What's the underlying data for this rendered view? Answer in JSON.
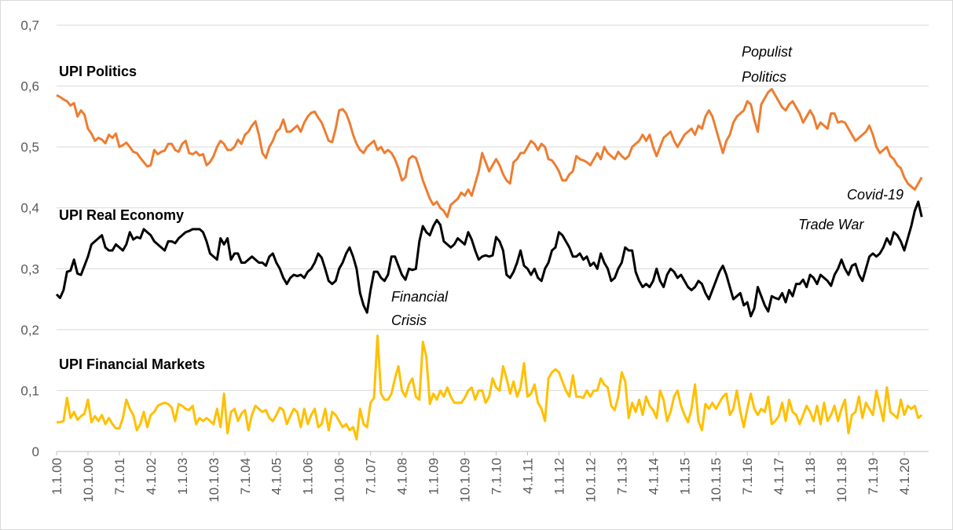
{
  "chart_data": {
    "type": "line",
    "categories": [
      "1.1.00",
      null,
      null,
      null,
      null,
      null,
      null,
      null,
      null,
      "10.1.00",
      null,
      null,
      null,
      null,
      null,
      null,
      null,
      null,
      "7.1.01",
      null,
      null,
      null,
      null,
      null,
      null,
      null,
      null,
      "4.1.02",
      null,
      null,
      null,
      null,
      null,
      null,
      null,
      null,
      "1.1.03",
      null,
      null,
      null,
      null,
      null,
      null,
      null,
      null,
      "10.1.03",
      null,
      null,
      null,
      null,
      null,
      null,
      null,
      null,
      "7.1.04",
      null,
      null,
      null,
      null,
      null,
      null,
      null,
      null,
      "4.1.05",
      null,
      null,
      null,
      null,
      null,
      null,
      null,
      null,
      "1.1.06",
      null,
      null,
      null,
      null,
      null,
      null,
      null,
      null,
      "10.1.06",
      null,
      null,
      null,
      null,
      null,
      null,
      null,
      null,
      "7.1.07",
      null,
      null,
      null,
      null,
      null,
      null,
      null,
      null,
      "4.1.08",
      null,
      null,
      null,
      null,
      null,
      null,
      null,
      null,
      "1.1.09",
      null,
      null,
      null,
      null,
      null,
      null,
      null,
      null,
      "10.1.09",
      null,
      null,
      null,
      null,
      null,
      null,
      null,
      null,
      "7.1.10",
      null,
      null,
      null,
      null,
      null,
      null,
      null,
      null,
      "4.1.11",
      null,
      null,
      null,
      null,
      null,
      null,
      null,
      null,
      "1.1.12",
      null,
      null,
      null,
      null,
      null,
      null,
      null,
      null,
      "10.1.12",
      null,
      null,
      null,
      null,
      null,
      null,
      null,
      null,
      "7.1.13",
      null,
      null,
      null,
      null,
      null,
      null,
      null,
      null,
      "4.1.14",
      null,
      null,
      null,
      null,
      null,
      null,
      null,
      null,
      "1.1.15",
      null,
      null,
      null,
      null,
      null,
      null,
      null,
      null,
      "10.1.15",
      null,
      null,
      null,
      null,
      null,
      null,
      null,
      null,
      "7.1.16",
      null,
      null,
      null,
      null,
      null,
      null,
      null,
      null,
      "4.1.17",
      null,
      null,
      null,
      null,
      null,
      null,
      null,
      null,
      "1.1.18",
      null,
      null,
      null,
      null,
      null,
      null,
      null,
      null,
      "10.1.18",
      null,
      null,
      null,
      null,
      null,
      null,
      null,
      null,
      "7.1.19",
      null,
      null,
      null,
      null,
      null,
      null,
      null,
      null,
      "4.1.20",
      null,
      null,
      null,
      null,
      null
    ],
    "series": [
      {
        "name": "UPI Politics",
        "color": "#ED7D31",
        "values": [
          0.585,
          0.582,
          0.578,
          0.575,
          0.568,
          0.572,
          0.55,
          0.56,
          0.553,
          0.53,
          0.522,
          0.51,
          0.515,
          0.512,
          0.506,
          0.52,
          0.515,
          0.522,
          0.5,
          0.503,
          0.507,
          0.5,
          0.492,
          0.49,
          0.482,
          0.475,
          0.468,
          0.47,
          0.495,
          0.488,
          0.492,
          0.494,
          0.505,
          0.505,
          0.495,
          0.492,
          0.505,
          0.51,
          0.49,
          0.488,
          0.492,
          0.486,
          0.488,
          0.47,
          0.475,
          0.485,
          0.5,
          0.51,
          0.505,
          0.495,
          0.495,
          0.5,
          0.512,
          0.505,
          0.52,
          0.525,
          0.535,
          0.542,
          0.52,
          0.49,
          0.482,
          0.5,
          0.51,
          0.525,
          0.53,
          0.545,
          0.525,
          0.525,
          0.53,
          0.535,
          0.525,
          0.54,
          0.55,
          0.556,
          0.558,
          0.548,
          0.54,
          0.525,
          0.51,
          0.508,
          0.53,
          0.56,
          0.562,
          0.555,
          0.54,
          0.52,
          0.505,
          0.495,
          0.49,
          0.5,
          0.505,
          0.51,
          0.495,
          0.5,
          0.49,
          0.495,
          0.49,
          0.48,
          0.465,
          0.445,
          0.45,
          0.48,
          0.485,
          0.482,
          0.465,
          0.445,
          0.43,
          0.415,
          0.405,
          0.41,
          0.4,
          0.395,
          0.385,
          0.405,
          0.41,
          0.415,
          0.425,
          0.42,
          0.43,
          0.42,
          0.44,
          0.46,
          0.49,
          0.475,
          0.46,
          0.47,
          0.48,
          0.47,
          0.455,
          0.445,
          0.44,
          0.475,
          0.48,
          0.49,
          0.49,
          0.5,
          0.51,
          0.505,
          0.495,
          0.505,
          0.5,
          0.48,
          0.478,
          0.47,
          0.46,
          0.445,
          0.445,
          0.455,
          0.46,
          0.485,
          0.48,
          0.478,
          0.475,
          0.47,
          0.48,
          0.49,
          0.48,
          0.5,
          0.49,
          0.485,
          0.48,
          0.492,
          0.485,
          0.48,
          0.485,
          0.5,
          0.505,
          0.51,
          0.52,
          0.51,
          0.52,
          0.5,
          0.485,
          0.5,
          0.515,
          0.52,
          0.525,
          0.51,
          0.5,
          0.51,
          0.52,
          0.525,
          0.53,
          0.52,
          0.535,
          0.53,
          0.55,
          0.56,
          0.55,
          0.53,
          0.51,
          0.49,
          0.51,
          0.52,
          0.54,
          0.55,
          0.555,
          0.56,
          0.575,
          0.57,
          0.545,
          0.525,
          0.57,
          0.58,
          0.59,
          0.595,
          0.585,
          0.575,
          0.565,
          0.56,
          0.57,
          0.575,
          0.565,
          0.555,
          0.54,
          0.55,
          0.56,
          0.55,
          0.53,
          0.54,
          0.535,
          0.53,
          0.555,
          0.555,
          0.54,
          0.542,
          0.54,
          0.53,
          0.52,
          0.51,
          0.515,
          0.52,
          0.525,
          0.535,
          0.52,
          0.5,
          0.49,
          0.495,
          0.5,
          0.485,
          0.48,
          0.47,
          0.465,
          0.45,
          0.44,
          0.435,
          0.43,
          0.44,
          0.45
        ]
      },
      {
        "name": "UPI Real Economy",
        "color": "#000000",
        "values": [
          0.258,
          0.252,
          0.265,
          0.295,
          0.297,
          0.315,
          0.292,
          0.29,
          0.305,
          0.32,
          0.34,
          0.345,
          0.35,
          0.355,
          0.335,
          0.33,
          0.33,
          0.34,
          0.335,
          0.33,
          0.34,
          0.36,
          0.348,
          0.352,
          0.35,
          0.365,
          0.36,
          0.355,
          0.345,
          0.34,
          0.335,
          0.33,
          0.345,
          0.345,
          0.342,
          0.35,
          0.355,
          0.36,
          0.362,
          0.365,
          0.365,
          0.365,
          0.36,
          0.345,
          0.325,
          0.32,
          0.315,
          0.35,
          0.34,
          0.35,
          0.315,
          0.325,
          0.325,
          0.31,
          0.31,
          0.315,
          0.32,
          0.315,
          0.31,
          0.31,
          0.305,
          0.32,
          0.325,
          0.31,
          0.3,
          0.285,
          0.275,
          0.285,
          0.29,
          0.288,
          0.29,
          0.285,
          0.295,
          0.3,
          0.31,
          0.325,
          0.318,
          0.3,
          0.28,
          0.275,
          0.28,
          0.3,
          0.31,
          0.325,
          0.335,
          0.32,
          0.3,
          0.26,
          0.24,
          0.228,
          0.265,
          0.295,
          0.295,
          0.285,
          0.28,
          0.29,
          0.32,
          0.32,
          0.305,
          0.29,
          0.282,
          0.3,
          0.298,
          0.3,
          0.345,
          0.37,
          0.36,
          0.355,
          0.37,
          0.38,
          0.372,
          0.345,
          0.34,
          0.335,
          0.34,
          0.35,
          0.345,
          0.34,
          0.36,
          0.348,
          0.33,
          0.315,
          0.32,
          0.322,
          0.32,
          0.322,
          0.352,
          0.345,
          0.33,
          0.29,
          0.285,
          0.295,
          0.31,
          0.33,
          0.305,
          0.3,
          0.29,
          0.3,
          0.285,
          0.28,
          0.3,
          0.31,
          0.33,
          0.335,
          0.36,
          0.355,
          0.345,
          0.335,
          0.32,
          0.32,
          0.325,
          0.315,
          0.32,
          0.305,
          0.31,
          0.3,
          0.325,
          0.31,
          0.3,
          0.28,
          0.285,
          0.3,
          0.31,
          0.335,
          0.33,
          0.33,
          0.295,
          0.28,
          0.27,
          0.275,
          0.27,
          0.28,
          0.3,
          0.28,
          0.27,
          0.29,
          0.3,
          0.295,
          0.285,
          0.29,
          0.28,
          0.27,
          0.265,
          0.27,
          0.28,
          0.275,
          0.26,
          0.25,
          0.265,
          0.28,
          0.295,
          0.305,
          0.29,
          0.27,
          0.25,
          0.255,
          0.26,
          0.24,
          0.245,
          0.222,
          0.235,
          0.27,
          0.255,
          0.24,
          0.23,
          0.255,
          0.252,
          0.25,
          0.26,
          0.245,
          0.265,
          0.255,
          0.275,
          0.275,
          0.282,
          0.27,
          0.29,
          0.285,
          0.275,
          0.29,
          0.285,
          0.28,
          0.272,
          0.29,
          0.3,
          0.315,
          0.3,
          0.29,
          0.305,
          0.308,
          0.29,
          0.28,
          0.3,
          0.32,
          0.325,
          0.32,
          0.325,
          0.335,
          0.35,
          0.34,
          0.36,
          0.355,
          0.345,
          0.33,
          0.35,
          0.37,
          0.395,
          0.41,
          0.385
        ]
      },
      {
        "name": "UPI Financial Markets",
        "color": "#FFC000",
        "values": [
          0.048,
          0.048,
          0.05,
          0.088,
          0.055,
          0.065,
          0.052,
          0.058,
          0.062,
          0.085,
          0.048,
          0.058,
          0.05,
          0.06,
          0.045,
          0.055,
          0.045,
          0.038,
          0.038,
          0.055,
          0.085,
          0.07,
          0.06,
          0.035,
          0.045,
          0.065,
          0.04,
          0.06,
          0.065,
          0.075,
          0.078,
          0.08,
          0.078,
          0.072,
          0.05,
          0.078,
          0.075,
          0.07,
          0.068,
          0.075,
          0.045,
          0.055,
          0.05,
          0.055,
          0.05,
          0.045,
          0.07,
          0.04,
          0.095,
          0.03,
          0.065,
          0.07,
          0.05,
          0.062,
          0.068,
          0.035,
          0.06,
          0.075,
          0.07,
          0.065,
          0.068,
          0.055,
          0.05,
          0.06,
          0.072,
          0.068,
          0.045,
          0.058,
          0.07,
          0.065,
          0.04,
          0.07,
          0.045,
          0.06,
          0.07,
          0.04,
          0.045,
          0.07,
          0.035,
          0.065,
          0.06,
          0.05,
          0.04,
          0.045,
          0.035,
          0.04,
          0.02,
          0.07,
          0.045,
          0.04,
          0.08,
          0.088,
          0.19,
          0.095,
          0.085,
          0.085,
          0.095,
          0.12,
          0.14,
          0.1,
          0.09,
          0.11,
          0.12,
          0.09,
          0.085,
          0.18,
          0.155,
          0.078,
          0.095,
          0.085,
          0.1,
          0.09,
          0.105,
          0.09,
          0.08,
          0.08,
          0.08,
          0.088,
          0.1,
          0.105,
          0.085,
          0.1,
          0.1,
          0.08,
          0.09,
          0.12,
          0.105,
          0.1,
          0.14,
          0.12,
          0.095,
          0.115,
          0.09,
          0.105,
          0.145,
          0.09,
          0.095,
          0.11,
          0.08,
          0.07,
          0.05,
          0.12,
          0.13,
          0.135,
          0.13,
          0.115,
          0.1,
          0.09,
          0.125,
          0.09,
          0.09,
          0.088,
          0.1,
          0.09,
          0.1,
          0.1,
          0.12,
          0.11,
          0.105,
          0.075,
          0.068,
          0.09,
          0.13,
          0.115,
          0.055,
          0.08,
          0.065,
          0.085,
          0.06,
          0.09,
          0.075,
          0.068,
          0.055,
          0.1,
          0.085,
          0.05,
          0.065,
          0.09,
          0.1,
          0.075,
          0.06,
          0.048,
          0.07,
          0.11,
          0.05,
          0.035,
          0.078,
          0.07,
          0.08,
          0.07,
          0.08,
          0.09,
          0.095,
          0.06,
          0.07,
          0.1,
          0.065,
          0.04,
          0.07,
          0.095,
          0.07,
          0.06,
          0.07,
          0.065,
          0.09,
          0.045,
          0.05,
          0.058,
          0.08,
          0.05,
          0.085,
          0.065,
          0.06,
          0.045,
          0.06,
          0.075,
          0.065,
          0.05,
          0.075,
          0.045,
          0.08,
          0.05,
          0.06,
          0.075,
          0.05,
          0.07,
          0.085,
          0.03,
          0.06,
          0.065,
          0.09,
          0.055,
          0.08,
          0.07,
          0.06,
          0.1,
          0.075,
          0.05,
          0.105,
          0.065,
          0.06,
          0.055,
          0.085,
          0.06,
          0.075,
          0.07,
          0.075,
          0.055,
          0.06
        ]
      }
    ],
    "ylim": [
      0,
      0.7
    ],
    "yticks": [
      0,
      {
        "value": 0.1,
        "label": "0,1"
      },
      {
        "value": 0.2,
        "label": "0,2"
      },
      {
        "value": 0.3,
        "label": "0,3"
      },
      {
        "value": 0.4,
        "label": "0,4"
      },
      {
        "value": 0.5,
        "label": "0,5"
      },
      {
        "value": 0.6,
        "label": "0,6"
      },
      {
        "value": 0.7,
        "label": "0,7"
      }
    ],
    "grid": true,
    "annotations": [
      {
        "lines": [
          "Populist",
          "Politics"
        ]
      },
      {
        "lines": [
          "Covid-19"
        ]
      },
      {
        "lines": [
          "Trade War"
        ]
      },
      {
        "lines": [
          "Financial",
          "Crisis"
        ]
      }
    ]
  }
}
